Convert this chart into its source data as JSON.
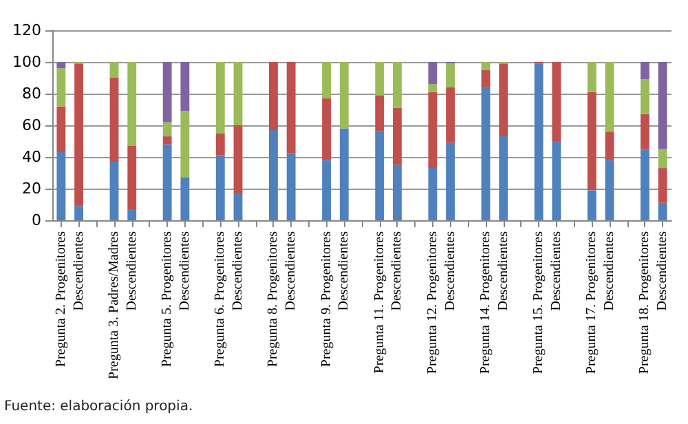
{
  "chart_data": {
    "type": "bar",
    "stacked": true,
    "grid": "y",
    "categories": [
      "Pregunta 2. Progenitores",
      "Descendientes",
      null,
      "Pregunta 3. Padres/Madres",
      "Descendientes",
      null,
      "Pregunta 5. Progenitores",
      "Descendientes",
      null,
      "Pregunta 6. Progenitores",
      "Descendientes",
      null,
      "Pregunta 8. Progenitores",
      "Descendientes",
      null,
      "Pregunta 9. Progenitores",
      "Descendientes",
      null,
      "Pregunta 11. Progenitores",
      "Descendientes",
      null,
      "Pregunta 12. Progenitores",
      "Descendientes",
      null,
      "Pregunta 14. Progenitores",
      "Descendientes",
      null,
      "Pregunta 15. Progenitores",
      "Descendientes",
      null,
      "Pregunta 17. Progenitores",
      "Descendientes",
      null,
      "Pregunta 18. Progenitores",
      "Descendientes"
    ],
    "series": [
      {
        "color": "#4f81bd",
        "values": [
          43,
          9,
          null,
          37,
          7,
          null,
          48,
          27,
          null,
          41,
          17,
          null,
          57,
          42,
          null,
          38,
          58,
          null,
          56,
          35,
          null,
          33,
          49,
          null,
          84,
          53,
          null,
          99,
          50,
          null,
          19,
          38,
          null,
          45,
          11
        ]
      },
      {
        "color": "#c0504d",
        "values": [
          29,
          90,
          null,
          53,
          40,
          null,
          5,
          0,
          null,
          14,
          43,
          null,
          43,
          58,
          null,
          39,
          0,
          null,
          23,
          36,
          null,
          48,
          35,
          null,
          11,
          46,
          null,
          1,
          50,
          null,
          62,
          18,
          null,
          22,
          22
        ]
      },
      {
        "color": "#9bbb59",
        "values": [
          24,
          1,
          null,
          10,
          53,
          null,
          9,
          42,
          null,
          45,
          40,
          null,
          0,
          0,
          null,
          23,
          42,
          null,
          21,
          29,
          null,
          5,
          15,
          null,
          5,
          1,
          null,
          0,
          0,
          null,
          19,
          44,
          null,
          22,
          12
        ]
      },
      {
        "color": "#8064a2",
        "values": [
          4,
          0,
          null,
          0,
          0,
          null,
          38,
          31,
          null,
          0,
          0,
          null,
          0,
          0,
          null,
          0,
          0,
          null,
          0,
          0,
          null,
          14,
          1,
          null,
          0,
          0,
          null,
          0,
          0,
          null,
          0,
          0,
          null,
          11,
          55
        ]
      }
    ],
    "ylim": [
      0,
      120
    ],
    "yticks": [
      0,
      20,
      40,
      60,
      80,
      100,
      120
    ],
    "annotations": [
      "Fuente: elaboración propia."
    ]
  }
}
